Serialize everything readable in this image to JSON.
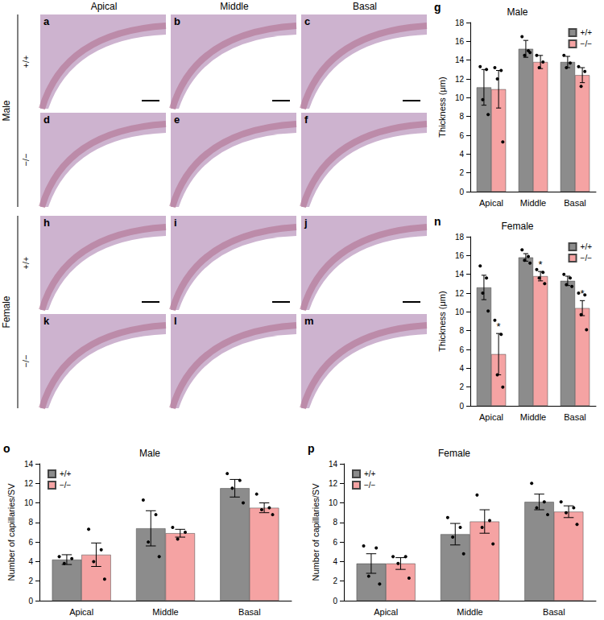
{
  "figure": {
    "column_labels": [
      "Apical",
      "Middle",
      "Basal"
    ],
    "groups": [
      {
        "label": "Male",
        "rows": [
          {
            "genotype": "+/+",
            "panels": [
              "a",
              "b",
              "c"
            ]
          },
          {
            "genotype": "−/−",
            "panels": [
              "d",
              "e",
              "f"
            ]
          }
        ]
      },
      {
        "label": "Female",
        "rows": [
          {
            "genotype": "+/+",
            "panels": [
              "h",
              "i",
              "j"
            ]
          },
          {
            "genotype": "−/−",
            "panels": [
              "k",
              "l",
              "m"
            ]
          }
        ]
      }
    ]
  },
  "chart_data": [
    {
      "type": "bar",
      "panel_label": "g",
      "title": "Male",
      "y_label": "Thickness (μm)",
      "categories": [
        "Apical",
        "Middle",
        "Basal"
      ],
      "series": [
        {
          "name": "+/+",
          "color": "#8c8c8c",
          "values": [
            11.1,
            15.2,
            13.8
          ],
          "errors": [
            1.9,
            0.9,
            0.6
          ],
          "points": [
            [
              13.3,
              13.0,
              9.8,
              8.2
            ],
            [
              16.5,
              15.0,
              14.5,
              14.8
            ],
            [
              14.5,
              13.7,
              13.2
            ]
          ]
        },
        {
          "name": "−/−",
          "color": "#f5a3a3",
          "values": [
            10.9,
            13.8,
            12.4
          ],
          "errors": [
            2.0,
            0.7,
            0.8
          ],
          "points": [
            [
              13.2,
              12.9,
              12.0,
              5.3
            ],
            [
              14.5,
              13.8,
              13.2
            ],
            [
              13.3,
              12.8,
              11.2
            ]
          ]
        }
      ],
      "ylim": [
        0,
        18
      ],
      "yticks": [
        0,
        2,
        4,
        6,
        8,
        10,
        12,
        14,
        16,
        18
      ],
      "grid": false,
      "legend": "upper right"
    },
    {
      "type": "bar",
      "panel_label": "n",
      "title": "Female",
      "y_label": "Thickness (μm)",
      "categories": [
        "Apical",
        "Middle",
        "Basal"
      ],
      "series": [
        {
          "name": "+/+",
          "color": "#8c8c8c",
          "values": [
            12.6,
            15.8,
            13.3
          ],
          "errors": [
            1.3,
            0.4,
            0.5
          ],
          "points": [
            [
              14.9,
              13.6,
              12.0,
              10.1
            ],
            [
              16.6,
              15.9,
              15.5,
              15.2
            ],
            [
              14.0,
              13.6,
              12.9,
              12.7
            ]
          ]
        },
        {
          "name": "−/−",
          "color": "#f5a3a3",
          "values": [
            5.5,
            13.8,
            10.4
          ],
          "errors": [
            2.2,
            0.5,
            0.8
          ],
          "points": [
            [
              9.1,
              7.6,
              3.3,
              2.0
            ],
            [
              14.5,
              14.2,
              13.6,
              13.0
            ],
            [
              12.0,
              11.8,
              9.7,
              8.1
            ]
          ],
          "annotations": [
            "*",
            "*",
            "*"
          ]
        }
      ],
      "ylim": [
        0,
        18
      ],
      "yticks": [
        0,
        2,
        4,
        6,
        8,
        10,
        12,
        14,
        16,
        18
      ],
      "grid": false,
      "legend": "upper right"
    },
    {
      "type": "bar",
      "panel_label": "o",
      "title": "Male",
      "y_label": "Number of capillaries/SV",
      "categories": [
        "Apical",
        "Middle",
        "Basal"
      ],
      "series": [
        {
          "name": "+/+",
          "color": "#8c8c8c",
          "values": [
            4.2,
            7.4,
            11.5
          ],
          "errors": [
            0.5,
            1.8,
            0.9
          ],
          "points": [
            [
              4.5,
              4.3,
              3.8
            ],
            [
              10.3,
              8.8,
              6.0,
              4.5
            ],
            [
              13.0,
              12.3,
              11.5,
              10.0
            ]
          ]
        },
        {
          "name": "−/−",
          "color": "#f5a3a3",
          "values": [
            4.7,
            6.9,
            9.5
          ],
          "errors": [
            1.2,
            0.4,
            0.5
          ],
          "points": [
            [
              7.3,
              5.2,
              4.0,
              2.2
            ],
            [
              7.5,
              7.0,
              6.3
            ],
            [
              10.9,
              9.5,
              9.3,
              8.8
            ]
          ]
        }
      ],
      "ylim": [
        0,
        14
      ],
      "yticks": [
        0,
        2,
        4,
        6,
        8,
        10,
        12,
        14
      ],
      "grid": false,
      "legend": "upper left"
    },
    {
      "type": "bar",
      "panel_label": "p",
      "title": "Female",
      "y_label": "Number of capillaries/SV",
      "categories": [
        "Apical",
        "Middle",
        "Basal"
      ],
      "series": [
        {
          "name": "+/+",
          "color": "#8c8c8c",
          "values": [
            3.8,
            6.8,
            10.1
          ],
          "errors": [
            1.0,
            1.1,
            0.8
          ],
          "points": [
            [
              5.6,
              5.4,
              2.5,
              1.7
            ],
            [
              8.5,
              7.5,
              6.5,
              4.8
            ],
            [
              12.0,
              10.1,
              9.5,
              8.8
            ]
          ]
        },
        {
          "name": "−/−",
          "color": "#f5a3a3",
          "values": [
            3.8,
            8.1,
            9.1
          ],
          "errors": [
            0.6,
            1.2,
            0.6
          ],
          "points": [
            [
              4.5,
              4.5,
              3.8,
              2.3
            ],
            [
              10.8,
              8.2,
              7.5,
              5.8
            ],
            [
              10.1,
              9.5,
              9.0,
              7.8
            ]
          ]
        }
      ],
      "ylim": [
        0,
        14
      ],
      "yticks": [
        0,
        2,
        4,
        6,
        8,
        10,
        12,
        14
      ],
      "grid": false,
      "legend": "upper left"
    }
  ]
}
